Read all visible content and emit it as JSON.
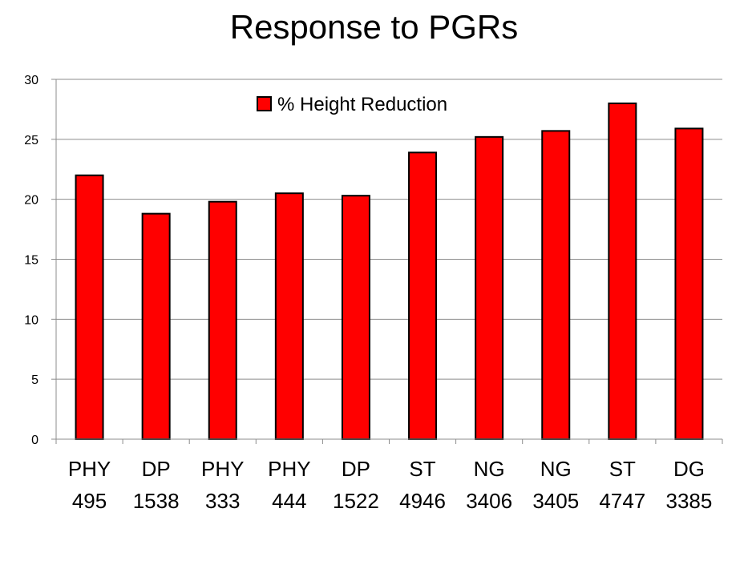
{
  "chart_data": {
    "type": "bar",
    "title": "Response to PGRs",
    "xlabel": "",
    "ylabel": "",
    "ylim": [
      0,
      30
    ],
    "yticks": [
      0,
      5,
      10,
      15,
      20,
      25,
      30
    ],
    "grid": true,
    "legend_position": "top",
    "categories": [
      [
        "PHY",
        "495"
      ],
      [
        "DP",
        "1538"
      ],
      [
        "PHY",
        "333"
      ],
      [
        "PHY",
        "444"
      ],
      [
        "DP",
        "1522"
      ],
      [
        "ST",
        "4946"
      ],
      [
        "NG",
        "3406"
      ],
      [
        "NG",
        "3405"
      ],
      [
        "ST",
        "4747"
      ],
      [
        "DG",
        "3385"
      ]
    ],
    "series": [
      {
        "name": "% Height Reduction",
        "color": "#ff0000",
        "values": [
          22.0,
          18.8,
          19.8,
          20.5,
          20.3,
          23.9,
          25.2,
          25.7,
          28.0,
          25.9
        ]
      }
    ]
  }
}
